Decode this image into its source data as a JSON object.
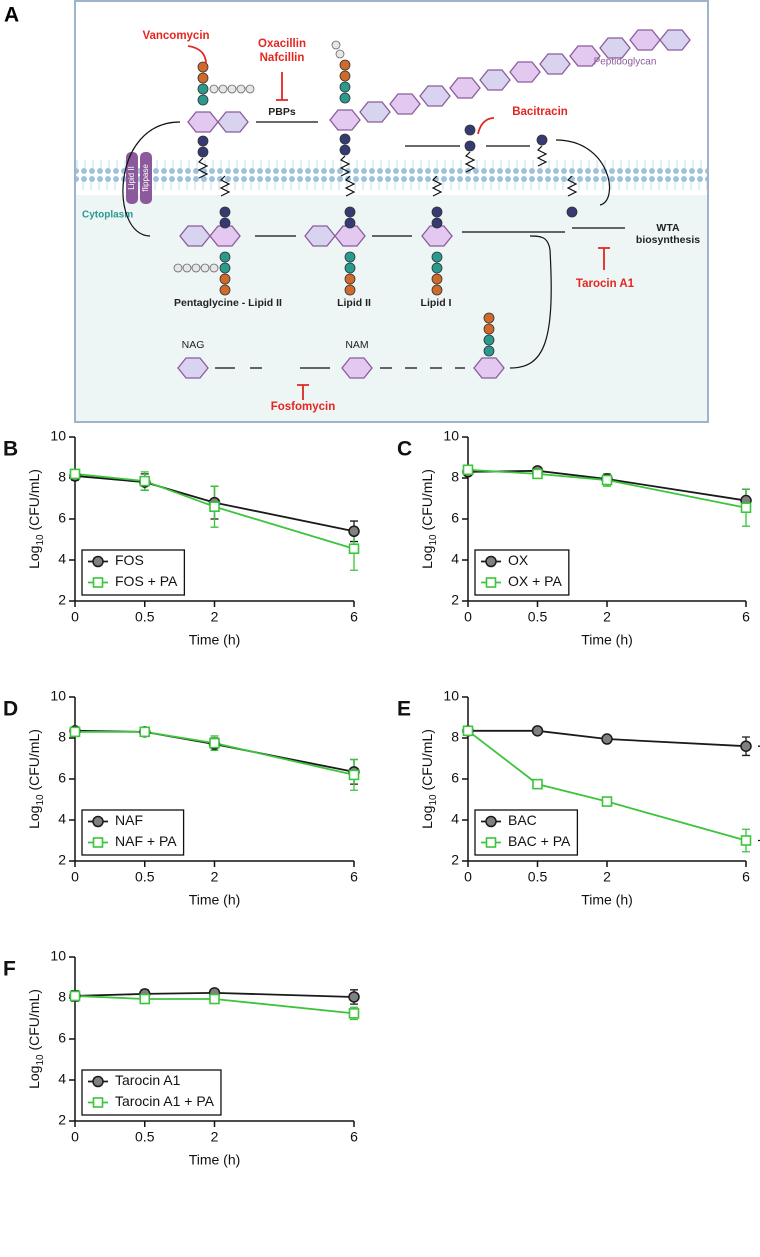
{
  "diagram": {
    "label": "A",
    "vancomycin": "Vancomycin",
    "oxacillin": "Oxacillin",
    "nafcillin": "Nafcillin",
    "pbps": "PBPs",
    "peptidoglycan": "Peptidoglycan",
    "bacitracin": "Bacitracin",
    "lipid_ii_flippase": [
      "Lipid II",
      "flippase"
    ],
    "cytoplasm": "Cytoplasm",
    "wta": [
      "WTA",
      "biosynthesis"
    ],
    "tarocin": "Tarocin A1",
    "pentaglycine_lipid_ii": "Pentaglycine - Lipid II",
    "lipid_ii": "Lipid II",
    "lipid_i": "Lipid I",
    "nag": "NAG",
    "nam": "NAM",
    "fosfomycin": "Fosfomycin"
  },
  "chart_data": [
    {
      "type": "line",
      "label": "B",
      "categories": [
        "0",
        "0.5",
        "2",
        "6"
      ],
      "x_label": "Time (h)",
      "y_label": {
        "text": "Log",
        "subscript": "10",
        "unit": " (CFU/mL)"
      },
      "ylim": [
        2,
        10
      ],
      "yticks": [
        2,
        4,
        6,
        8,
        10
      ],
      "legend": "lower left",
      "series": [
        {
          "name": "FOS",
          "color": "#1a1a1a",
          "marker": "circle",
          "values": [
            8.1,
            7.8,
            6.8,
            5.4
          ],
          "errors": [
            0.2,
            0.4,
            0.8,
            0.5
          ]
        },
        {
          "name": "FOS + PA",
          "color": "#3cc43c",
          "marker": "square",
          "values": [
            8.2,
            7.85,
            6.6,
            4.55
          ],
          "errors": [
            0.15,
            0.45,
            1.0,
            1.05
          ]
        }
      ]
    },
    {
      "type": "line",
      "label": "C",
      "categories": [
        "0",
        "0.5",
        "2",
        "6"
      ],
      "x_label": "Time (h)",
      "y_label": {
        "text": "Log",
        "subscript": "10",
        "unit": " (CFU/mL)"
      },
      "ylim": [
        2,
        10
      ],
      "yticks": [
        2,
        4,
        6,
        8,
        10
      ],
      "legend": "lower left",
      "series": [
        {
          "name": "OX",
          "color": "#1a1a1a",
          "marker": "circle",
          "values": [
            8.3,
            8.35,
            7.95,
            6.9
          ],
          "errors": [
            0.15,
            0.1,
            0.25,
            0.55
          ]
        },
        {
          "name": "OX + PA",
          "color": "#3cc43c",
          "marker": "square",
          "values": [
            8.4,
            8.2,
            7.9,
            6.55
          ],
          "errors": [
            0.1,
            0.2,
            0.3,
            0.9
          ]
        }
      ]
    },
    {
      "type": "line",
      "label": "D",
      "categories": [
        "0",
        "0.5",
        "2",
        "6"
      ],
      "x_label": "Time (h)",
      "y_label": {
        "text": "Log",
        "subscript": "10",
        "unit": " (CFU/mL)"
      },
      "ylim": [
        2,
        10
      ],
      "yticks": [
        2,
        4,
        6,
        8,
        10
      ],
      "legend": "lower left",
      "series": [
        {
          "name": "NAF",
          "color": "#1a1a1a",
          "marker": "circle",
          "values": [
            8.35,
            8.3,
            7.7,
            6.35
          ],
          "errors": [
            0.1,
            0.1,
            0.3,
            0.6
          ]
        },
        {
          "name": "NAF + PA",
          "color": "#3cc43c",
          "marker": "square",
          "values": [
            8.3,
            8.3,
            7.75,
            6.2
          ],
          "errors": [
            0.1,
            0.1,
            0.35,
            0.75
          ]
        }
      ]
    },
    {
      "type": "line",
      "label": "E",
      "categories": [
        "0",
        "0.5",
        "2",
        "6"
      ],
      "x_label": "Time (h)",
      "y_label": {
        "text": "Log",
        "subscript": "10",
        "unit": " (CFU/mL)"
      },
      "ylim": [
        2,
        10
      ],
      "yticks": [
        2,
        4,
        6,
        8,
        10
      ],
      "legend": "lower left",
      "annotation": "****",
      "series": [
        {
          "name": "BAC",
          "color": "#1a1a1a",
          "marker": "circle",
          "values": [
            8.35,
            8.35,
            7.95,
            7.6
          ],
          "errors": [
            0.1,
            0.1,
            0.15,
            0.45
          ]
        },
        {
          "name": "BAC + PA",
          "color": "#3cc43c",
          "marker": "square",
          "values": [
            8.35,
            5.75,
            4.9,
            3.0
          ],
          "errors": [
            0.1,
            0.1,
            0.1,
            0.55
          ]
        }
      ]
    },
    {
      "type": "line",
      "label": "F",
      "categories": [
        "0",
        "0.5",
        "2",
        "6"
      ],
      "x_label": "Time (h)",
      "y_label": {
        "text": "Log",
        "subscript": "10",
        "unit": " (CFU/mL)"
      },
      "ylim": [
        2,
        10
      ],
      "yticks": [
        2,
        4,
        6,
        8,
        10
      ],
      "legend": "lower left",
      "series": [
        {
          "name": "Tarocin A1",
          "color": "#1a1a1a",
          "marker": "circle",
          "values": [
            8.1,
            8.2,
            8.25,
            8.05
          ],
          "errors": [
            0.25,
            0.2,
            0.1,
            0.35
          ]
        },
        {
          "name": "Tarocin A1 + PA",
          "color": "#3cc43c",
          "marker": "square",
          "values": [
            8.1,
            7.95,
            7.95,
            7.25
          ],
          "errors": [
            0.2,
            0.1,
            0.15,
            0.3
          ]
        }
      ]
    }
  ]
}
